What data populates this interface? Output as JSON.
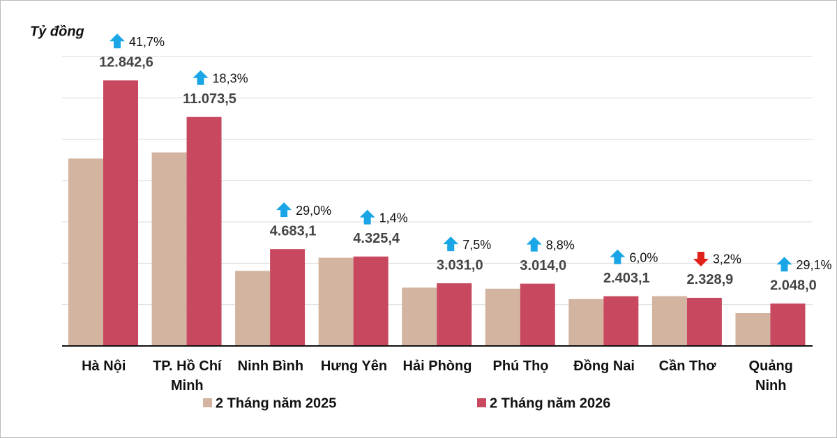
{
  "chart_data": {
    "type": "bar",
    "y_label": "Tỷ đồng",
    "categories": [
      "Hà Nội",
      "TP. Hồ Chí Minh",
      "Ninh Bình",
      "Hưng Yên",
      "Hải Phòng",
      "Phú Thọ",
      "Đồng Nai",
      "Cần Thơ",
      "Quảng Ninh"
    ],
    "series": [
      {
        "name": "2 Tháng năm 2025",
        "color": "#d2b4a0",
        "values": [
          9063,
          9361,
          3630,
          4266,
          2820,
          2770,
          2267,
          2406,
          1586
        ]
      },
      {
        "name": "2 Tháng năm 2026",
        "color": "#c8485f",
        "values": [
          12842.6,
          11073.5,
          4683.1,
          4325.4,
          3031.0,
          3014.0,
          2403.1,
          2328.9,
          2048.0
        ],
        "value_labels": [
          "12.842,6",
          "11.073,5",
          "4.683,1",
          "4.325,4",
          "3.031,0",
          "3.014,0",
          "2.403,1",
          "2.328,9",
          "2.048,0"
        ]
      }
    ],
    "changes": [
      41.7,
      18.3,
      29.0,
      1.4,
      7.5,
      8.8,
      6.0,
      -3.2,
      29.1
    ],
    "change_labels": [
      "41,7%",
      "18,3%",
      "29,0%",
      "1,4%",
      "7,5%",
      "8,8%",
      "6,0%",
      "3,2%",
      "29,1%"
    ],
    "increase_color": "#1aa6e6",
    "decrease_color": "#e0201a",
    "ylim": [
      0,
      14000
    ],
    "yticks": [
      0,
      2000,
      4000,
      6000,
      8000,
      10000,
      12000,
      14000
    ],
    "grid": true
  }
}
